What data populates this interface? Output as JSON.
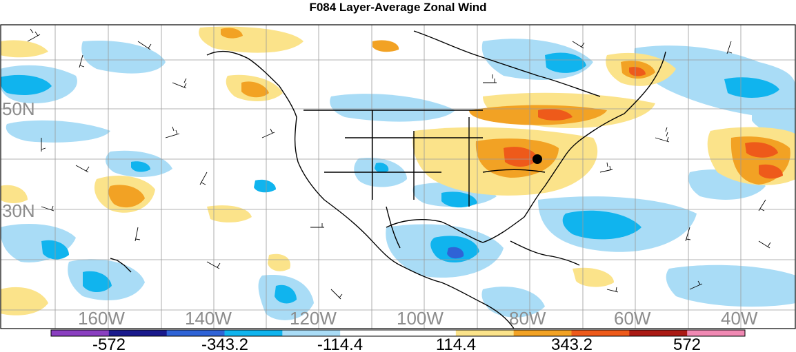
{
  "title": "F084 Layer-Average Zonal Wind",
  "lat_labels": [
    "50N",
    "30N"
  ],
  "lon_labels": [
    "160W",
    "140W",
    "120W",
    "100W",
    "80W",
    "60W",
    "40W"
  ],
  "colorbar": {
    "colors": [
      "#8a3fc0",
      "#1a1a8c",
      "#2f63d6",
      "#10b4ee",
      "#a9dcf6",
      "#ffffff",
      "#ffffff",
      "#fbe38a",
      "#f2a224",
      "#ee5a1a",
      "#aa1a14",
      "#f089b3"
    ],
    "tick_labels": [
      "-572",
      "-343.2",
      "-114.4",
      "114.4",
      "343.2",
      "572"
    ]
  },
  "marker": {
    "name": "location-dot",
    "color": "#000000"
  }
}
